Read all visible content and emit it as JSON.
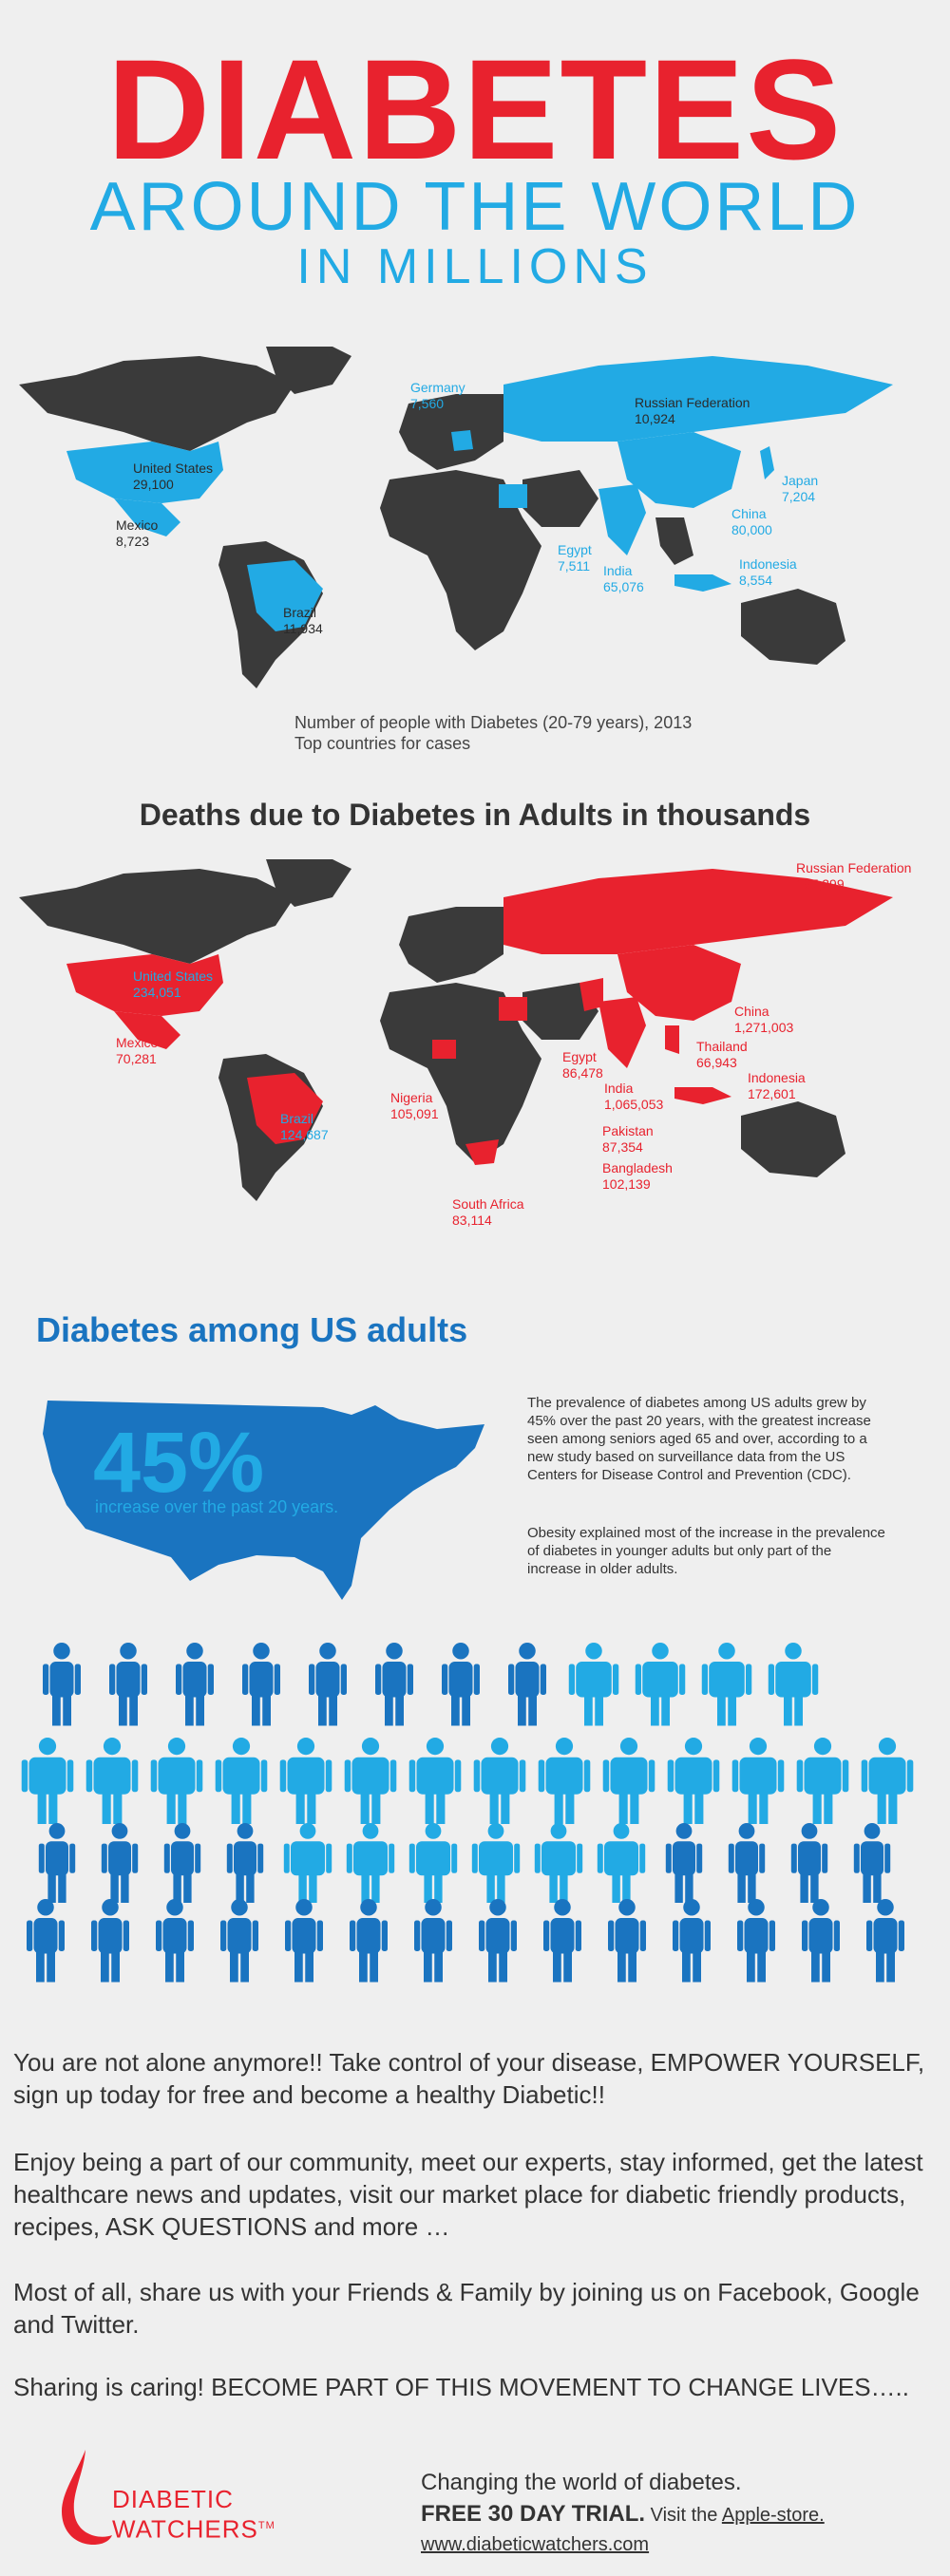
{
  "header": {
    "title": "DIABETES",
    "subtitle": "AROUND THE WORLD",
    "subtitle2": "IN MILLIONS"
  },
  "cases_map": {
    "caption_line1": "Number of people with Diabetes (20-79 years), 2013",
    "caption_line2": "Top countries for cases",
    "labels": [
      {
        "id": "us",
        "name": "United States",
        "value": "29,100",
        "color": "dark"
      },
      {
        "id": "mexico",
        "name": "Mexico",
        "value": "8,723",
        "color": "dark"
      },
      {
        "id": "brazil",
        "name": "Brazil",
        "value": "11,934",
        "color": "dark"
      },
      {
        "id": "germany",
        "name": "Germany",
        "value": "7,560",
        "color": "blue"
      },
      {
        "id": "russia",
        "name": "Russian Federation",
        "value": "10,924",
        "color": "dark"
      },
      {
        "id": "egypt",
        "name": "Egypt",
        "value": "7,511",
        "color": "blue"
      },
      {
        "id": "india",
        "name": "India",
        "value": "65,076",
        "color": "blue"
      },
      {
        "id": "china",
        "name": "China",
        "value": "80,000",
        "color": "blue"
      },
      {
        "id": "japan",
        "name": "Japan",
        "value": "7,204",
        "color": "blue"
      },
      {
        "id": "indonesia",
        "name": "Indonesia",
        "value": "8,554",
        "color": "blue"
      }
    ]
  },
  "deaths_map": {
    "heading": "Deaths due to Diabetes in Adults in thousands",
    "labels": [
      {
        "id": "us",
        "name": "United States",
        "value": "234,051",
        "color": "blue"
      },
      {
        "id": "mexico",
        "name": "Mexico",
        "value": "70,281",
        "color": "red"
      },
      {
        "id": "brazil",
        "name": "Brazil",
        "value": "124,687",
        "color": "blue"
      },
      {
        "id": "russia",
        "name": "Russian Federation",
        "value": "197,299",
        "color": "red"
      },
      {
        "id": "china",
        "name": "China",
        "value": "1,271,003",
        "color": "red"
      },
      {
        "id": "thailand",
        "name": "Thailand",
        "value": "66,943",
        "color": "red"
      },
      {
        "id": "indonesia",
        "name": "Indonesia",
        "value": "172,601",
        "color": "red"
      },
      {
        "id": "egypt",
        "name": "Egypt",
        "value": "86,478",
        "color": "red"
      },
      {
        "id": "india",
        "name": "India",
        "value": "1,065,053",
        "color": "red"
      },
      {
        "id": "nigeria",
        "name": "Nigeria",
        "value": "105,091",
        "color": "red"
      },
      {
        "id": "pakistan",
        "name": "Pakistan",
        "value": "87,354",
        "color": "red"
      },
      {
        "id": "bangladesh",
        "name": "Bangladesh",
        "value": "102,139",
        "color": "red"
      },
      {
        "id": "southafrica",
        "name": "South Africa",
        "value": "83,114",
        "color": "red"
      }
    ]
  },
  "us_section": {
    "heading": "Diabetes among US adults",
    "stat": "45%",
    "stat_label": "increase over the past 20 years.",
    "para1": "The prevalence of diabetes among US adults grew by 45% over the past 20 years, with the greatest increase seen among seniors aged 65 and over, according to a new study based on surveillance data from the US Centers for Disease Control and Prevention (CDC).",
    "para2": "Obesity explained most of the increase in the prevalence of diabetes in younger adults but only part of the increase in older adults."
  },
  "body": {
    "p1_start": "You are not alone anymore!! Take control of your disease, ",
    "p1_emph": "EMPOWER YOURSELF",
    "p1_end": ", sign up today for free and become a healthy Diabetic!!",
    "p2": "Enjoy being a part of our community, meet our experts, stay informed, get the latest healthcare news and updates, visit our market place for diabetic friendly products, recipes, ASK QUESTIONS and more …",
    "p3": "Most of all, share us with your Friends & Family by joining us on Facebook, Google and Twitter.",
    "p4": "Sharing is caring! BECOME PART OF THIS MOVEMENT TO CHANGE LIVES….."
  },
  "footer": {
    "logo_line1": "DIABETIC",
    "logo_line2": "WATCHERS",
    "logo_tm": "TM",
    "tagline": "Changing the world of diabetes.",
    "trial": "FREE 30 DAY TRIAL.",
    "visit": " Visit the ",
    "store_link": "Apple-store.",
    "website": "www.diabeticwatchers.com"
  },
  "colors": {
    "red": "#e8222e",
    "light_blue": "#22aae4",
    "dark_blue": "#1a74c0",
    "land": "#3a3a3a",
    "background": "#efefef"
  }
}
